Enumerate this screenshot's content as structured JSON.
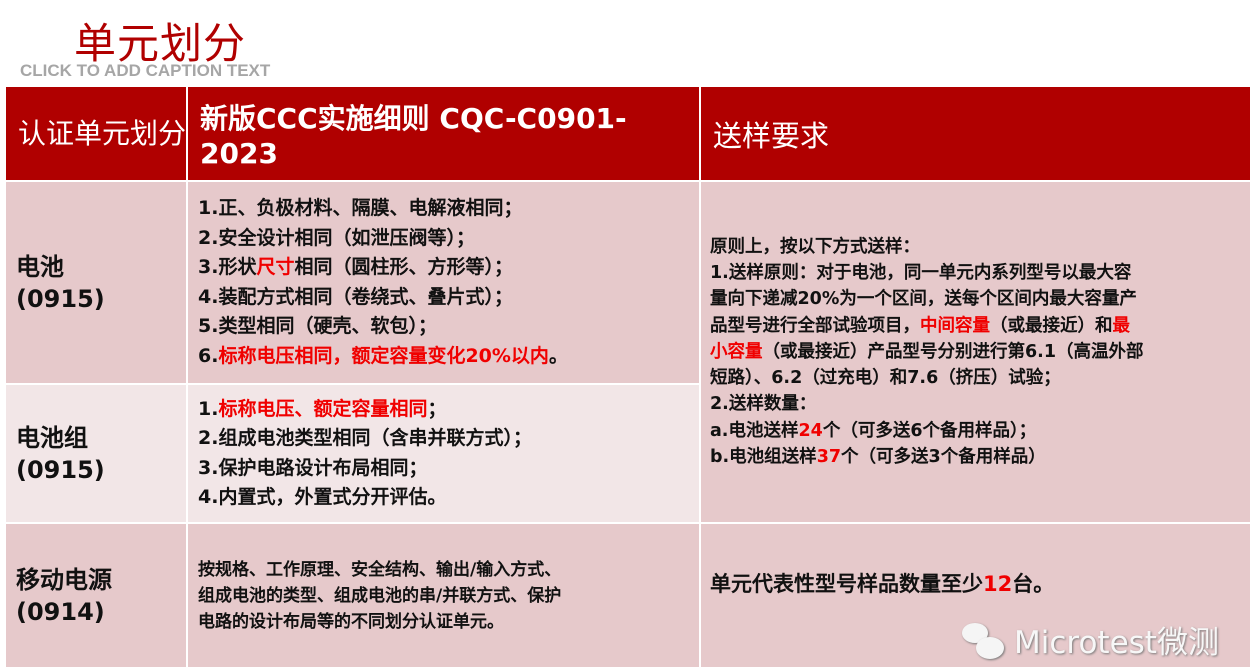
{
  "slide_title": "单元划分",
  "caption": "CLICK TO ADD CAPTION TEXT",
  "header": {
    "col1": "认证单元划分",
    "col2": "新版CCC实施细则 CQC-C0901-2023",
    "col3": "送样要求"
  },
  "rows": [
    {
      "unit": "电池",
      "code": "(0915)",
      "lines": [
        [
          {
            "t": "1.正、负极材料、隔膜、电解液相同；"
          }
        ],
        [
          {
            "t": "2.安全设计相同（如泄压阀等）；"
          }
        ],
        [
          {
            "t": "3.形状"
          },
          {
            "t": "尺寸",
            "red": true
          },
          {
            "t": "相同（圆柱形、方形等）；"
          }
        ],
        [
          {
            "t": "4.装配方式相同（卷绕式、叠片式）；"
          }
        ],
        [
          {
            "t": "5.类型相同（硬壳、软包）；"
          }
        ],
        [
          {
            "t": "6."
          },
          {
            "t": "标称电压相同，额定容量变化20%以内",
            "red": true
          },
          {
            "t": "。"
          }
        ]
      ]
    },
    {
      "unit": "电池组",
      "code": "(0915)",
      "lines": [
        [
          {
            "t": "1."
          },
          {
            "t": "标称电压、额定容量相同",
            "red": true
          },
          {
            "t": "；"
          }
        ],
        [
          {
            "t": "2.组成电池类型相同（含串并联方式）；"
          }
        ],
        [
          {
            "t": "3.保护电路设计布局相同；"
          }
        ],
        [
          {
            "t": "4.内置式，外置式分开评估。"
          }
        ]
      ]
    },
    {
      "unit": "移动电源",
      "code": "(0914)",
      "lines": [
        [
          {
            "t": "按规格、工作原理、安全结构、输出/输入方式、"
          }
        ],
        [
          {
            "t": "组成电池的类型、组成电池的串/并联方式、保护"
          }
        ],
        [
          {
            "t": "电路的设计布局等的不同划分认证单元。"
          }
        ]
      ]
    }
  ],
  "requirements_battery": [
    [
      {
        "t": "原则上，按以下方式送样："
      }
    ],
    [
      {
        "t": "1.送样原则：对于电池，同一单元内系列型号以最大容"
      }
    ],
    [
      {
        "t": "量向下递减20%为一个区间，送每个区间内最大容量产"
      }
    ],
    [
      {
        "t": "品型号进行全部试验项目，"
      },
      {
        "t": "中间容量",
        "red": true
      },
      {
        "t": "（或最接近）和"
      },
      {
        "t": "最",
        "red": true
      }
    ],
    [
      {
        "t": "小容量",
        "red": true
      },
      {
        "t": "（或最接近）产品型号分别进行第6.1（高温外部"
      }
    ],
    [
      {
        "t": "短路）、6.2（过充电）和7.6（挤压）试验；"
      }
    ],
    [
      {
        "t": "2.送样数量："
      }
    ],
    [
      {
        "t": "a.电池送样"
      },
      {
        "t": "24",
        "red": true
      },
      {
        "t": "个（可多送6个备用样品）；"
      }
    ],
    [
      {
        "t": "b.电池组送样"
      },
      {
        "t": "37",
        "red": true
      },
      {
        "t": "个（可多送3个备用样品）"
      }
    ]
  ],
  "requirements_power_bank": [
    [
      {
        "t": "单元代表性型号样品数量至少"
      },
      {
        "t": "12",
        "red": true
      },
      {
        "t": "台。"
      }
    ]
  ],
  "watermark": "Microtest微测",
  "colors": {
    "header": "#b00000",
    "highlight": "#f00000",
    "row_dark": "#e6c9cb",
    "row_light": "#f2e6e7"
  }
}
